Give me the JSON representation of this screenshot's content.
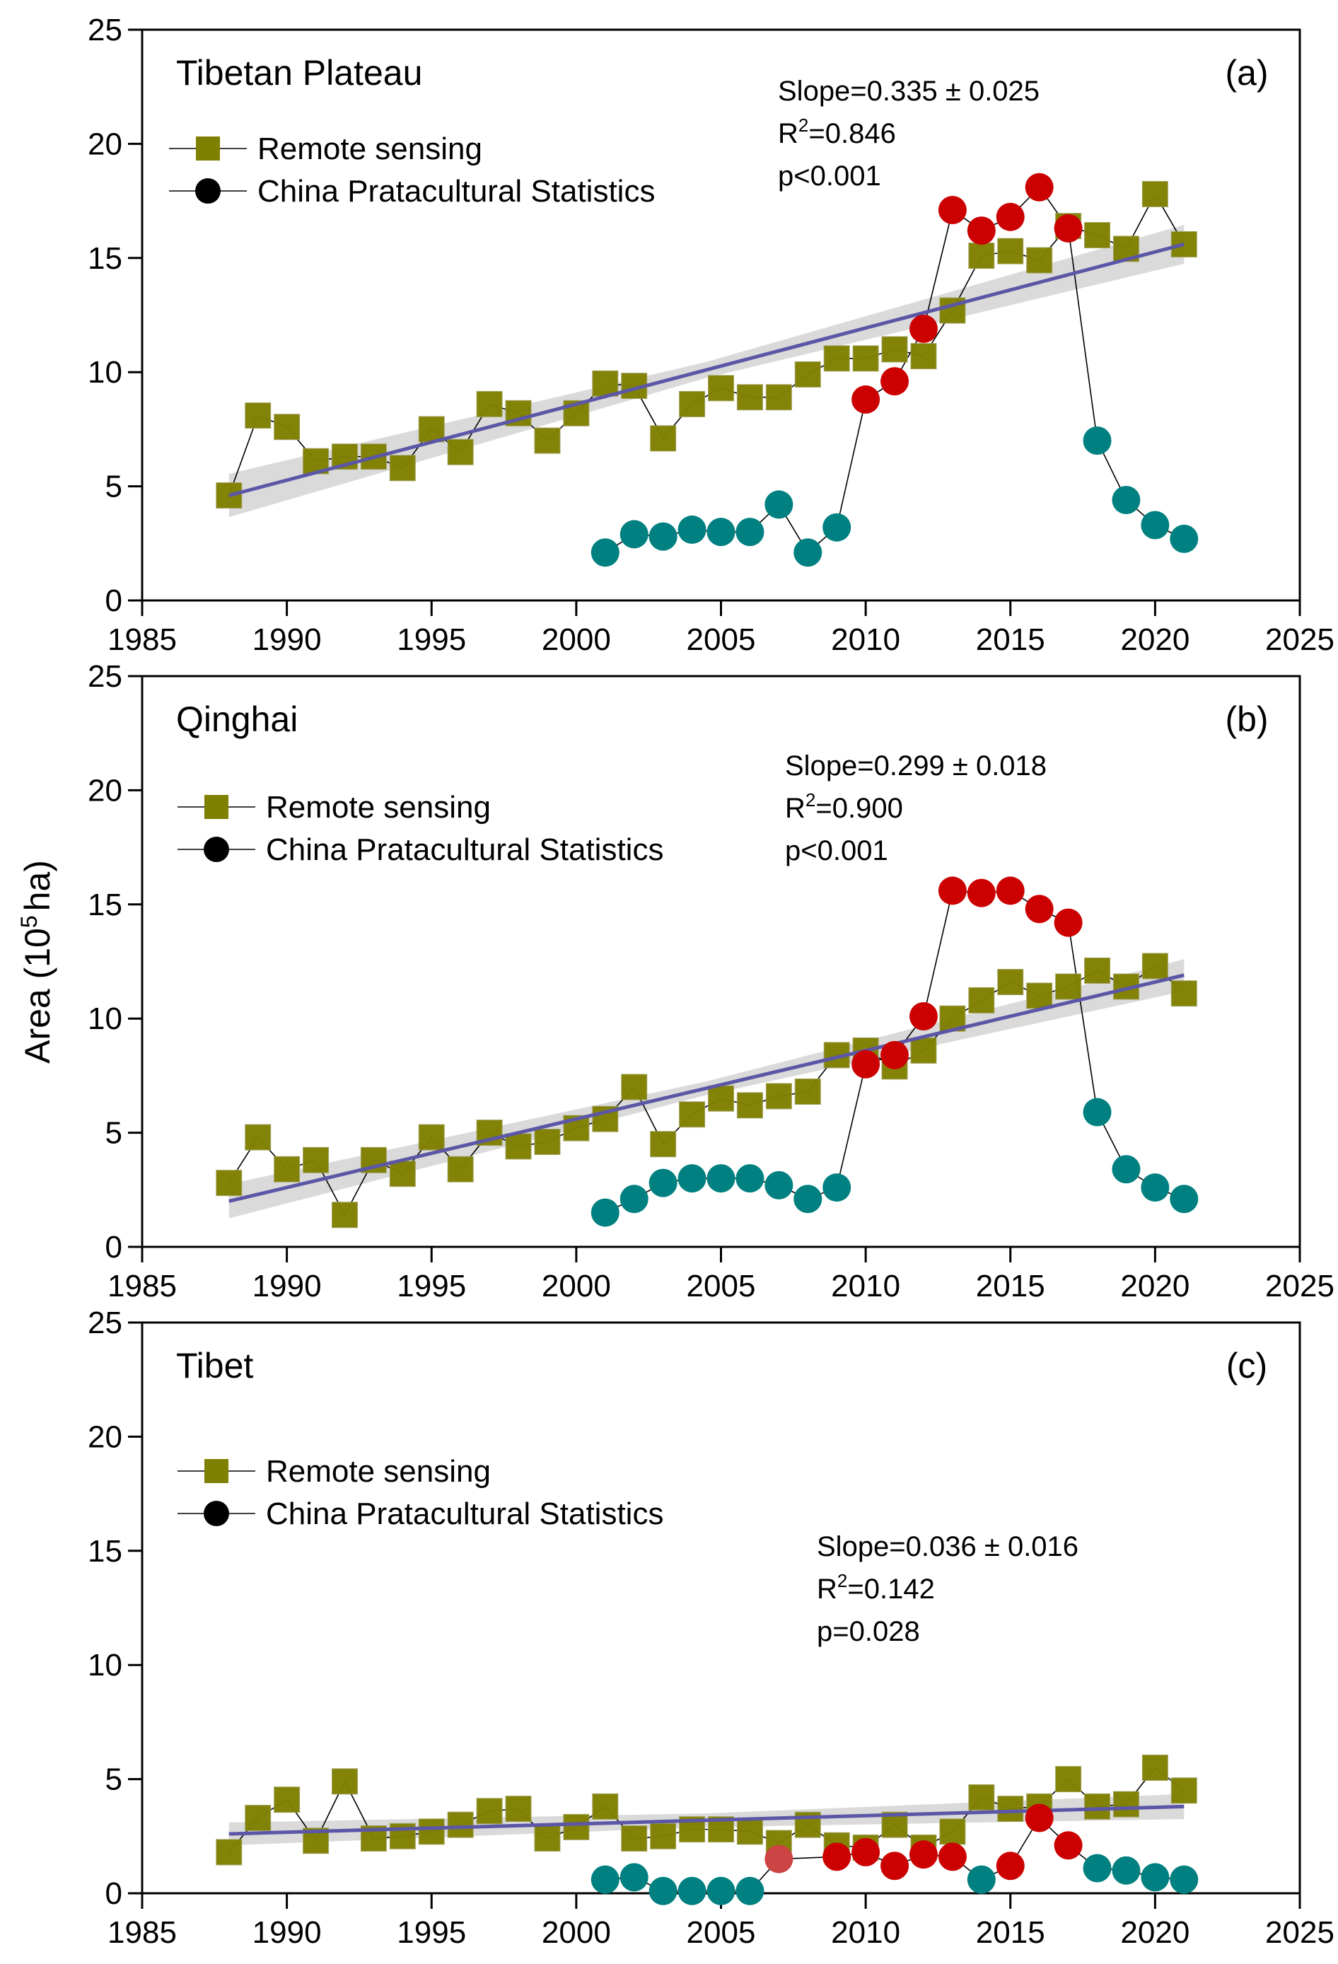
{
  "chart_data": {
    "type": "line",
    "ylabel": "Area (10^5 ha)",
    "ylabel_parts": {
      "prefix": "Area (10",
      "sup": "5",
      "suffix": "ha)"
    },
    "xlim": [
      1985,
      2025
    ],
    "ylim": [
      0,
      25
    ],
    "xticks": [
      1985,
      1990,
      1995,
      2000,
      2005,
      2010,
      2015,
      2020,
      2025
    ],
    "yticks": [
      0,
      5,
      10,
      15,
      20,
      25
    ],
    "grid": false,
    "legend": {
      "placement": "top-left",
      "entries": [
        {
          "label": "Remote sensing",
          "marker": "square",
          "color": "#808000"
        },
        {
          "label": "China Pratacultural Statistics",
          "marker": "circle",
          "color": "#000000"
        }
      ]
    },
    "colors": {
      "remote_sensing": "#808000",
      "stats_low": "#008080",
      "stats_high": "#CC0000",
      "stats_light_red": "#CC4444",
      "trend_line": "#5B56A6",
      "confidence_band": "#D3D3D3",
      "connector": "#000000"
    },
    "panels": [
      {
        "id": "a",
        "tag": "(a)",
        "title": "Tibetan Plateau",
        "stats": {
          "slope": "Slope=0.335 ± 0.025",
          "r2_prefix": "R",
          "r2_sup": "2",
          "r2_value": "=0.846",
          "p": "p<0.001"
        },
        "trend": {
          "x": [
            1988,
            2021
          ],
          "y": [
            4.6,
            15.6
          ],
          "band_halfwidth": [
            0.95,
            0.85
          ],
          "band_mid": 0.35
        },
        "series": [
          {
            "name": "Remote sensing",
            "x": [
              1988,
              1989,
              1990,
              1991,
              1992,
              1993,
              1994,
              1995,
              1996,
              1997,
              1998,
              1999,
              2000,
              2001,
              2002,
              2003,
              2004,
              2005,
              2006,
              2007,
              2008,
              2009,
              2010,
              2011,
              2012,
              2013,
              2014,
              2015,
              2016,
              2017,
              2018,
              2019,
              2020,
              2021
            ],
            "values": [
              4.6,
              8.1,
              7.6,
              6.1,
              6.3,
              6.3,
              5.8,
              7.5,
              6.5,
              8.6,
              8.2,
              7.0,
              8.2,
              9.5,
              9.4,
              7.1,
              8.6,
              9.3,
              8.9,
              8.9,
              9.9,
              10.6,
              10.6,
              11.0,
              10.7,
              12.7,
              15.1,
              15.3,
              14.9,
              16.4,
              16.0,
              15.4,
              17.8,
              15.6
            ]
          },
          {
            "name": "China Pratacultural Statistics",
            "x": [
              2001,
              2002,
              2003,
              2004,
              2005,
              2006,
              2007,
              2008,
              2009,
              2010,
              2011,
              2012,
              2013,
              2014,
              2015,
              2016,
              2017,
              2018,
              2019,
              2020,
              2021
            ],
            "values": [
              2.1,
              2.9,
              2.8,
              3.1,
              3.0,
              3.0,
              4.2,
              2.1,
              3.2,
              8.8,
              9.6,
              11.9,
              17.1,
              16.2,
              16.8,
              18.1,
              16.3,
              7.0,
              4.4,
              3.3,
              2.7
            ],
            "point_colors": [
              "teal",
              "teal",
              "teal",
              "teal",
              "teal",
              "teal",
              "teal",
              "teal",
              "teal",
              "red",
              "red",
              "red",
              "red",
              "red",
              "red",
              "red",
              "red",
              "teal",
              "teal",
              "teal",
              "teal"
            ]
          }
        ]
      },
      {
        "id": "b",
        "tag": "(b)",
        "title": "Qinghai",
        "stats": {
          "slope": "Slope=0.299 ± 0.018",
          "r2_prefix": "R",
          "r2_sup": "2",
          "r2_value": "=0.900",
          "p": "p<0.001"
        },
        "trend": {
          "x": [
            1988,
            2021
          ],
          "y": [
            2.0,
            11.9
          ],
          "band_halfwidth": [
            0.75,
            0.7
          ],
          "band_mid": 0.3
        },
        "series": [
          {
            "name": "Remote sensing",
            "x": [
              1988,
              1989,
              1990,
              1991,
              1992,
              1993,
              1994,
              1995,
              1996,
              1997,
              1998,
              1999,
              2000,
              2001,
              2002,
              2003,
              2004,
              2005,
              2006,
              2007,
              2008,
              2009,
              2010,
              2011,
              2012,
              2013,
              2014,
              2015,
              2016,
              2017,
              2018,
              2019,
              2020,
              2021
            ],
            "values": [
              2.8,
              4.8,
              3.4,
              3.8,
              1.4,
              3.8,
              3.2,
              4.8,
              3.4,
              5.0,
              4.4,
              4.6,
              5.2,
              5.6,
              7.0,
              4.5,
              5.8,
              6.5,
              6.2,
              6.6,
              6.8,
              8.4,
              8.6,
              7.9,
              8.6,
              10.0,
              10.8,
              11.6,
              11.0,
              11.4,
              12.1,
              11.4,
              12.3,
              11.1
            ]
          },
          {
            "name": "China Pratacultural Statistics",
            "x": [
              2001,
              2002,
              2003,
              2004,
              2005,
              2006,
              2007,
              2008,
              2009,
              2010,
              2011,
              2012,
              2013,
              2014,
              2015,
              2016,
              2017,
              2018,
              2019,
              2020,
              2021
            ],
            "values": [
              1.5,
              2.1,
              2.8,
              3.0,
              3.0,
              3.0,
              2.7,
              2.1,
              2.6,
              8.0,
              8.4,
              10.1,
              15.6,
              15.5,
              15.6,
              14.8,
              14.2,
              5.9,
              3.4,
              2.6,
              2.1
            ],
            "point_colors": [
              "teal",
              "teal",
              "teal",
              "teal",
              "teal",
              "teal",
              "teal",
              "teal",
              "teal",
              "red",
              "red",
              "red",
              "red",
              "red",
              "red",
              "red",
              "red",
              "teal",
              "teal",
              "teal",
              "teal"
            ]
          }
        ]
      },
      {
        "id": "c",
        "tag": "(c)",
        "title": "Tibet",
        "stats": {
          "slope": "Slope=0.036 ± 0.016",
          "r2_prefix": "R",
          "r2_sup": "2",
          "r2_value": "=0.142",
          "p": "p=0.028"
        },
        "trend": {
          "x": [
            1988,
            2021
          ],
          "y": [
            2.6,
            3.8
          ],
          "band_halfwidth": [
            0.5,
            0.55
          ],
          "band_mid": 0.3
        },
        "series": [
          {
            "name": "Remote sensing",
            "x": [
              1988,
              1989,
              1990,
              1991,
              1992,
              1993,
              1994,
              1995,
              1996,
              1997,
              1998,
              1999,
              2000,
              2001,
              2002,
              2003,
              2004,
              2005,
              2006,
              2007,
              2008,
              2009,
              2010,
              2011,
              2012,
              2013,
              2014,
              2015,
              2016,
              2017,
              2018,
              2019,
              2020,
              2021
            ],
            "values": [
              1.8,
              3.3,
              4.1,
              2.3,
              4.9,
              2.4,
              2.5,
              2.7,
              3.0,
              3.6,
              3.7,
              2.4,
              2.9,
              3.8,
              2.4,
              2.5,
              2.8,
              2.8,
              2.7,
              2.2,
              3.0,
              2.1,
              2.0,
              3.0,
              2.0,
              2.7,
              4.2,
              3.7,
              3.8,
              5.0,
              3.8,
              3.9,
              5.5,
              4.5
            ]
          },
          {
            "name": "China Pratacultural Statistics",
            "x": [
              2001,
              2002,
              2003,
              2004,
              2005,
              2006,
              2007,
              2009,
              2010,
              2011,
              2012,
              2013,
              2014,
              2015,
              2016,
              2017,
              2018,
              2019,
              2020,
              2021
            ],
            "values": [
              0.6,
              0.7,
              0.1,
              0.1,
              0.1,
              0.1,
              1.5,
              1.6,
              1.8,
              1.2,
              1.7,
              1.6,
              0.6,
              1.2,
              3.3,
              2.1,
              1.1,
              1.0,
              0.7,
              0.6
            ],
            "point_colors": [
              "teal",
              "teal",
              "teal",
              "teal",
              "teal",
              "teal",
              "lightred",
              "red",
              "red",
              "red",
              "red",
              "red",
              "teal",
              "red",
              "red",
              "red",
              "teal",
              "teal",
              "teal",
              "teal"
            ]
          }
        ]
      }
    ]
  }
}
